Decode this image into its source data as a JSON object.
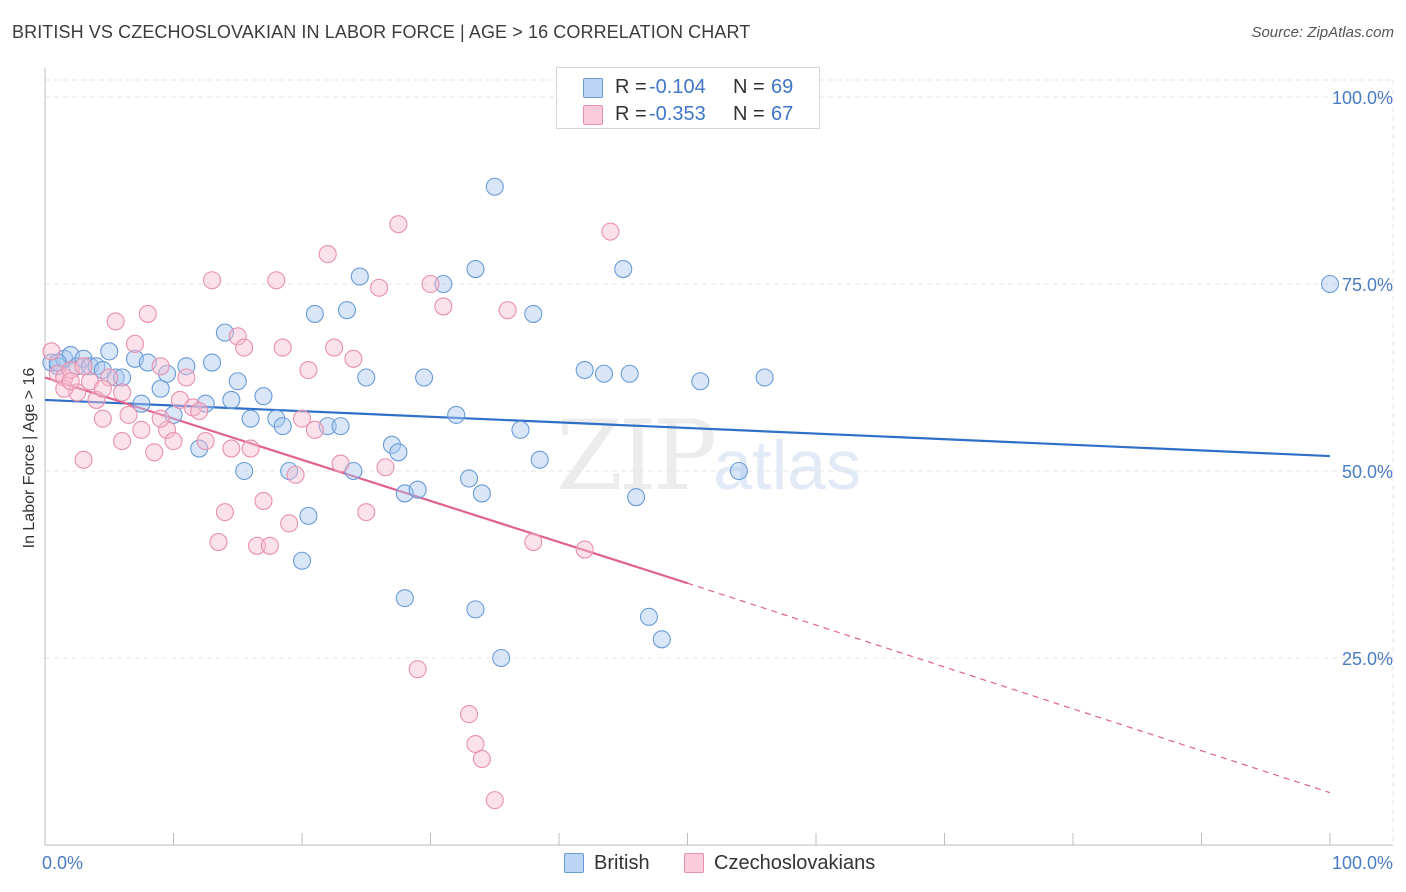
{
  "header": {
    "title": "BRITISH VS CZECHOSLOVAKIAN IN LABOR FORCE | AGE > 16 CORRELATION CHART",
    "source": "Source: ZipAtlas.com"
  },
  "watermark": {
    "zip": "ZIP",
    "atlas": "atlas"
  },
  "legend": {
    "british": {
      "r_label": "R =",
      "r_value": "-0.104",
      "n_label": "N =",
      "n_value": "69"
    },
    "czech": {
      "r_label": "R =",
      "r_value": "-0.353",
      "n_label": "N =",
      "n_value": "67"
    }
  },
  "bottom_legend": {
    "british": "British",
    "czech": "Czechoslovakians"
  },
  "colors": {
    "british_fill": "#a9c8ef",
    "british_stroke": "#6a9bd8",
    "british_line": "#2f6fc9",
    "czech_fill": "#f7bcd0",
    "czech_stroke": "#e890ae",
    "czech_line": "#e0628c",
    "tick_text": "#4a7cc4",
    "grid": "#e6e6e6"
  },
  "chart_data": {
    "type": "scatter",
    "title": "BRITISH VS CZECHOSLOVAKIAN IN LABOR FORCE | AGE > 16 CORRELATION CHART",
    "xlabel": "",
    "ylabel": "In Labor Force | Age > 16",
    "xlim": [
      0,
      100
    ],
    "ylim": [
      0,
      100
    ],
    "x_tick_labels": [
      "0.0%",
      "100.0%"
    ],
    "y_tick_labels": [
      {
        "value": 100,
        "label": "100.0%"
      },
      {
        "value": 75,
        "label": "75.0%"
      },
      {
        "value": 50,
        "label": "50.0%"
      },
      {
        "value": 25,
        "label": "25.0%"
      }
    ],
    "series": [
      {
        "name": "British",
        "trend": {
          "x": [
            0,
            100
          ],
          "y": [
            59.5,
            52.0
          ],
          "dashed_after": null
        },
        "points": [
          [
            0.5,
            64.5
          ],
          [
            1,
            64
          ],
          [
            1.5,
            65
          ],
          [
            2,
            65.5
          ],
          [
            2.5,
            64
          ],
          [
            3,
            65
          ],
          [
            3.5,
            64
          ],
          [
            4,
            64
          ],
          [
            4.5,
            63.5
          ],
          [
            5,
            66
          ],
          [
            5.5,
            62.5
          ],
          [
            6,
            62.5
          ],
          [
            7,
            65
          ],
          [
            7.5,
            59
          ],
          [
            8,
            64.5
          ],
          [
            9,
            61
          ],
          [
            9.5,
            63
          ],
          [
            10,
            57.5
          ],
          [
            11,
            64
          ],
          [
            12,
            53
          ],
          [
            12.5,
            59
          ],
          [
            13,
            64.5
          ],
          [
            14,
            68.5
          ],
          [
            14.5,
            59.5
          ],
          [
            15,
            62
          ],
          [
            15.5,
            50
          ],
          [
            16,
            57
          ],
          [
            17,
            60
          ],
          [
            18,
            57
          ],
          [
            18.5,
            56
          ],
          [
            19,
            50
          ],
          [
            20,
            38
          ],
          [
            20.5,
            44
          ],
          [
            21,
            71
          ],
          [
            22,
            56
          ],
          [
            23,
            56
          ],
          [
            23.5,
            71.5
          ],
          [
            24,
            50
          ],
          [
            24.5,
            76
          ],
          [
            25,
            62.5
          ],
          [
            27,
            53.5
          ],
          [
            27.5,
            52.5
          ],
          [
            28,
            47
          ],
          [
            28,
            33
          ],
          [
            29,
            47.5
          ],
          [
            29.5,
            62.5
          ],
          [
            31,
            75
          ],
          [
            32,
            57.5
          ],
          [
            33,
            49
          ],
          [
            33.5,
            77
          ],
          [
            33.5,
            31.5
          ],
          [
            34,
            47
          ],
          [
            35,
            88
          ],
          [
            35.5,
            25
          ],
          [
            37,
            55.5
          ],
          [
            38,
            71
          ],
          [
            38.5,
            51.5
          ],
          [
            42,
            63.5
          ],
          [
            43.5,
            63
          ],
          [
            45,
            77
          ],
          [
            45.5,
            63
          ],
          [
            46,
            46.5
          ],
          [
            47,
            30.5
          ],
          [
            48,
            27.5
          ],
          [
            51,
            62
          ],
          [
            54,
            50
          ],
          [
            56,
            62.5
          ],
          [
            100,
            75
          ],
          [
            1,
            64.5
          ]
        ]
      },
      {
        "name": "Czechoslovakians",
        "trend": {
          "x": [
            0,
            50
          ],
          "y": [
            62.5,
            35.0
          ],
          "dashed_to": [
            100,
            7.0
          ]
        },
        "points": [
          [
            0.5,
            66
          ],
          [
            1,
            63
          ],
          [
            1.5,
            62.5
          ],
          [
            2,
            63.5
          ],
          [
            2.5,
            60.5
          ],
          [
            3,
            51.5
          ],
          [
            3.5,
            62
          ],
          [
            4,
            59.5
          ],
          [
            4.5,
            57
          ],
          [
            5,
            62.5
          ],
          [
            5.5,
            70
          ],
          [
            6,
            60.5
          ],
          [
            6.5,
            57.5
          ],
          [
            7,
            67
          ],
          [
            7.5,
            55.5
          ],
          [
            8,
            71
          ],
          [
            8.5,
            52.5
          ],
          [
            9,
            64
          ],
          [
            9.5,
            55.5
          ],
          [
            10,
            54
          ],
          [
            10.5,
            59.5
          ],
          [
            11,
            62.5
          ],
          [
            11.5,
            58.5
          ],
          [
            12,
            58
          ],
          [
            12.5,
            54
          ],
          [
            13,
            75.5
          ],
          [
            13.5,
            40.5
          ],
          [
            14,
            44.5
          ],
          [
            14.5,
            53
          ],
          [
            15,
            68
          ],
          [
            15.5,
            66.5
          ],
          [
            16,
            53
          ],
          [
            16.5,
            40
          ],
          [
            17,
            46
          ],
          [
            17.5,
            40
          ],
          [
            18,
            75.5
          ],
          [
            18.5,
            66.5
          ],
          [
            19,
            43
          ],
          [
            19.5,
            49.5
          ],
          [
            20,
            57
          ],
          [
            20.5,
            63.5
          ],
          [
            21,
            55.5
          ],
          [
            22,
            79
          ],
          [
            22.5,
            66.5
          ],
          [
            23,
            51
          ],
          [
            24,
            65
          ],
          [
            25,
            44.5
          ],
          [
            26,
            74.5
          ],
          [
            26.5,
            50.5
          ],
          [
            27.5,
            83
          ],
          [
            29,
            23.5
          ],
          [
            30,
            75
          ],
          [
            31,
            72
          ],
          [
            33,
            17.5
          ],
          [
            33.5,
            13.5
          ],
          [
            34,
            11.5
          ],
          [
            35,
            6
          ],
          [
            36,
            71.5
          ],
          [
            38,
            40.5
          ],
          [
            42,
            39.5
          ],
          [
            44,
            82
          ],
          [
            1.5,
            61
          ],
          [
            2,
            62
          ],
          [
            3,
            64
          ],
          [
            4.5,
            61
          ],
          [
            6,
            54
          ],
          [
            9,
            57
          ]
        ]
      }
    ]
  }
}
